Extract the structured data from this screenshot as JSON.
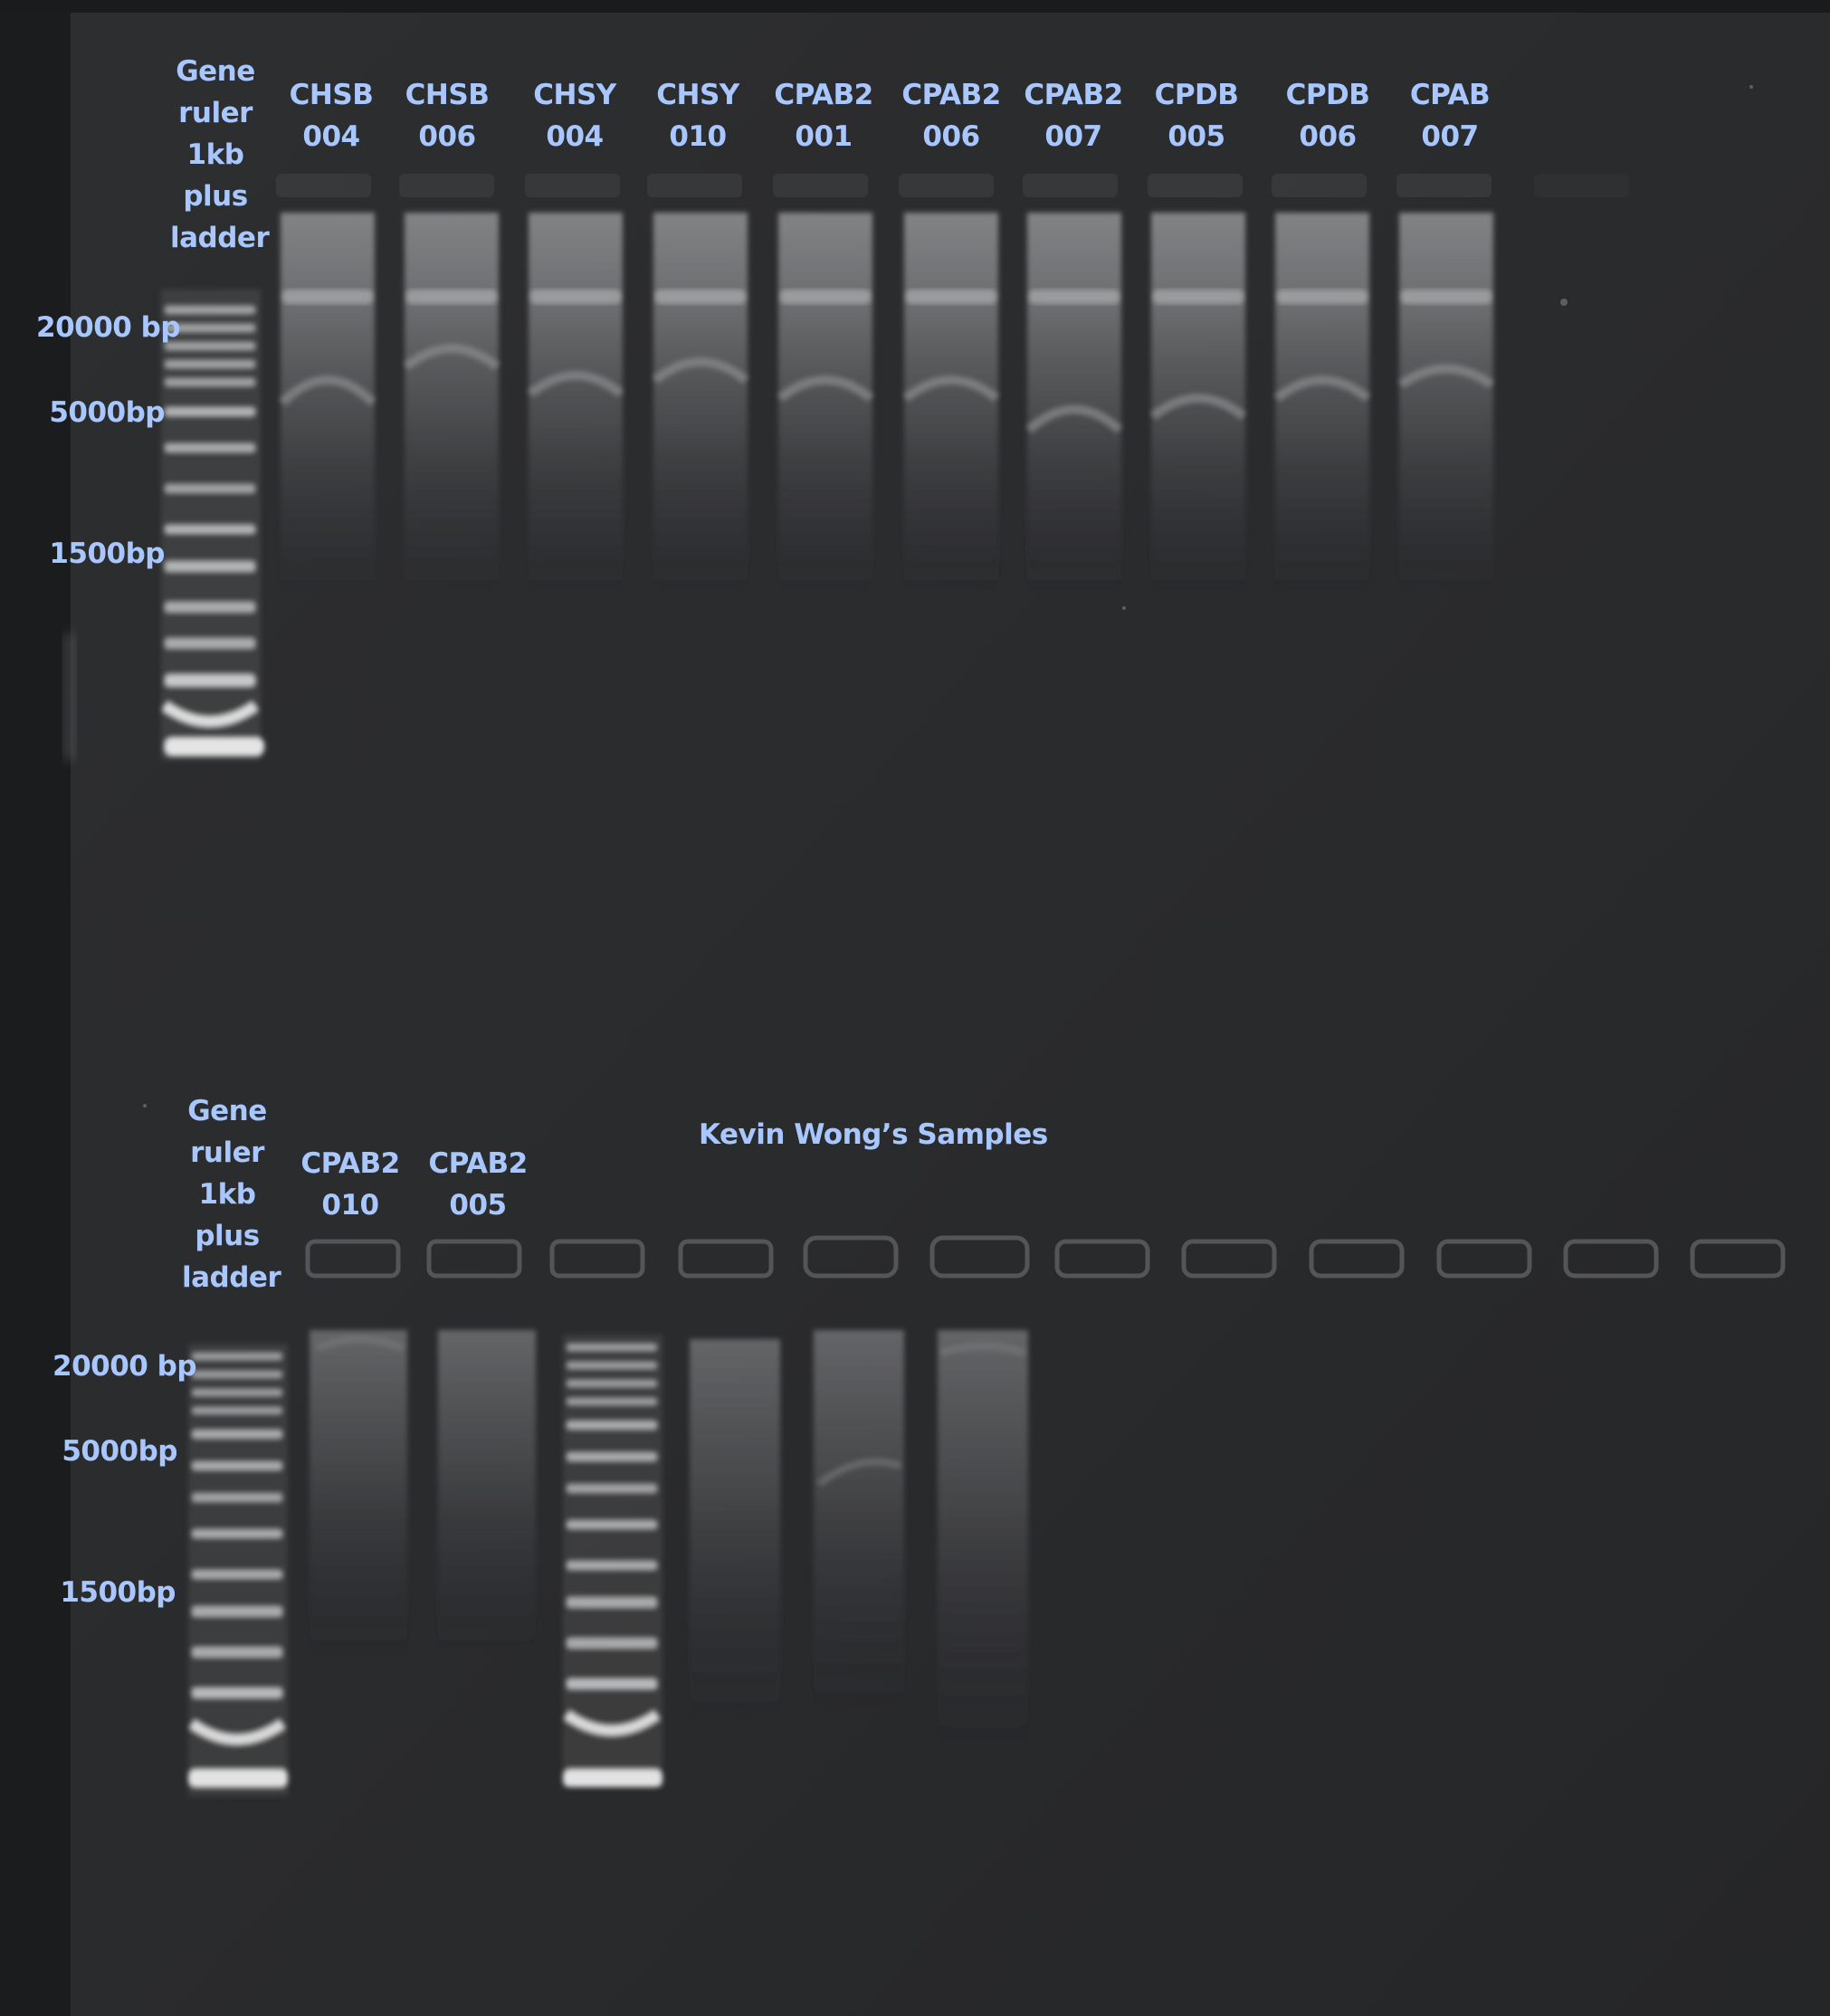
{
  "top_gel": {
    "ladder_label": [
      "Gene",
      "ruler",
      "1kb",
      "plus",
      "ladder"
    ],
    "lanes": [
      {
        "line1": "CHSB",
        "line2": "004"
      },
      {
        "line1": "CHSB",
        "line2": "006"
      },
      {
        "line1": "CHSY",
        "line2": "004"
      },
      {
        "line1": "CHSY",
        "line2": "010"
      },
      {
        "line1": "CPAB2",
        "line2": "001"
      },
      {
        "line1": "CPAB2",
        "line2": "006"
      },
      {
        "line1": "CPAB2",
        "line2": "007"
      },
      {
        "line1": "CPDB",
        "line2": "005"
      },
      {
        "line1": "CPDB",
        "line2": "006"
      },
      {
        "line1": "CPAB",
        "line2": "007"
      }
    ],
    "markers": [
      "20000 bp",
      "5000bp",
      "1500bp"
    ]
  },
  "bottom_gel": {
    "ladder_label": [
      "Gene",
      "ruler",
      "1kb",
      "plus",
      "ladder"
    ],
    "lanes": [
      {
        "line1": "CPAB2",
        "line2": "010"
      },
      {
        "line1": "CPAB2",
        "line2": "005"
      }
    ],
    "section_title": "Kevin Wong’s Samples",
    "markers": [
      "20000 bp",
      "5000bp",
      "1500bp"
    ]
  },
  "colors": {
    "label_text": "#a9c7ff",
    "gel_background": "#2b2c2e",
    "band_glow": "#e8e8e8"
  }
}
